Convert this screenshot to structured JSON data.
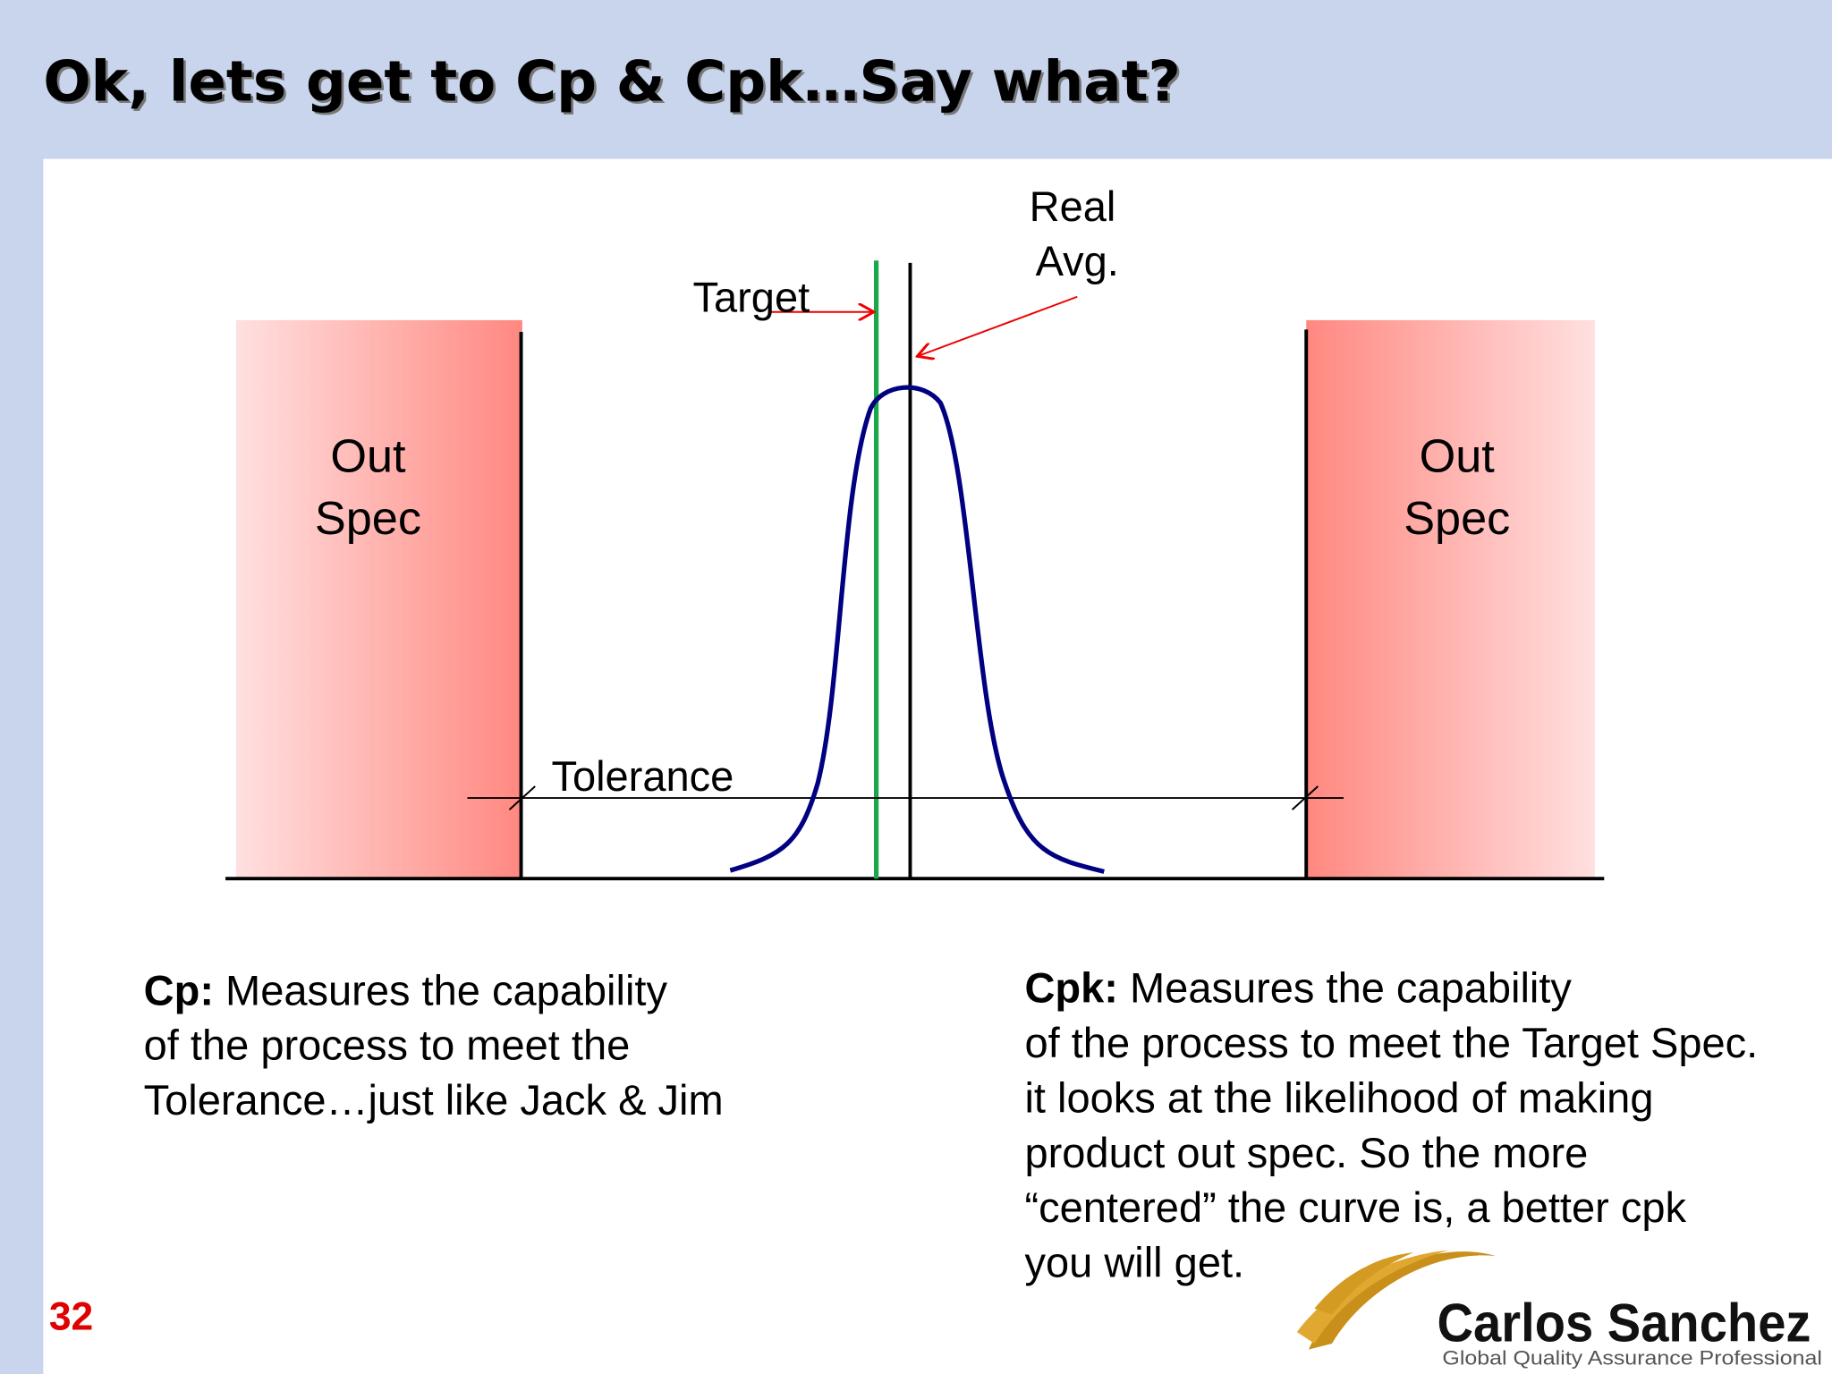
{
  "header": {
    "title": "Ok, lets get to Cp & Cpk…Say what?"
  },
  "diagram": {
    "real_avg": [
      "Real",
      "Avg."
    ],
    "target": "Target",
    "out_spec_left": [
      "Out",
      "Spec"
    ],
    "out_spec_right": [
      "Out",
      "Spec"
    ],
    "tolerance": "Tolerance"
  },
  "cp": {
    "label": "Cp:",
    "lines": [
      "Measures the capability",
      "of the process to meet the",
      "Tolerance…just like Jack & Jim"
    ]
  },
  "cpk": {
    "label": "Cpk:",
    "lines": [
      "Measures the capability",
      "of the process to meet the Target Spec.",
      "it looks at the likelihood of making",
      "product out spec. So the more",
      "“centered” the curve is, a better cpk",
      "you will get."
    ]
  },
  "footer": {
    "page_number": "32",
    "logo_name": "Carlos Sanchez",
    "logo_tagline": "Global Quality Assurance Professional"
  }
}
